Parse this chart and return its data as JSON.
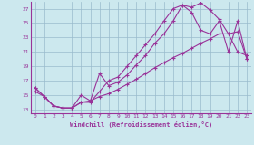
{
  "line1_spiky": {
    "x": [
      0,
      1,
      2,
      3,
      4,
      5,
      6,
      7,
      8,
      9,
      10,
      11,
      12,
      13,
      14,
      15,
      16,
      17,
      18,
      19,
      20,
      21,
      22,
      23
    ],
    "y": [
      16.0,
      14.8,
      13.5,
      13.2,
      13.2,
      15.0,
      14.2,
      18.0,
      16.3,
      16.8,
      17.8,
      19.2,
      20.5,
      22.2,
      23.5,
      25.3,
      27.5,
      27.2,
      27.8,
      26.8,
      25.5,
      23.5,
      21.0,
      20.5
    ]
  },
  "line2_peak": {
    "x": [
      0,
      1,
      2,
      3,
      4,
      5,
      6,
      7,
      8,
      9,
      10,
      11,
      12,
      13,
      14,
      15,
      16,
      17,
      18,
      19,
      20,
      21,
      22,
      23
    ],
    "y": [
      16.0,
      14.8,
      13.5,
      13.2,
      13.2,
      14.0,
      14.0,
      15.5,
      17.0,
      17.5,
      19.0,
      20.5,
      22.0,
      23.5,
      25.3,
      27.0,
      27.5,
      26.5,
      24.0,
      23.5,
      25.3,
      21.0,
      25.3,
      20.0
    ]
  },
  "line3_straight": {
    "x": [
      0,
      1,
      2,
      3,
      4,
      5,
      6,
      7,
      8,
      9,
      10,
      11,
      12,
      13,
      14,
      15,
      16,
      17,
      18,
      19,
      20,
      21,
      22,
      23
    ],
    "y": [
      15.5,
      14.8,
      13.5,
      13.2,
      13.2,
      14.0,
      14.2,
      14.8,
      15.2,
      15.8,
      16.5,
      17.2,
      18.0,
      18.8,
      19.5,
      20.2,
      20.8,
      21.5,
      22.2,
      22.8,
      23.5,
      23.5,
      23.8,
      20.0
    ]
  },
  "color": "#993399",
  "bg_color": "#cce8ee",
  "grid_color": "#99bbcc",
  "xlabel": "Windchill (Refroidissement éolien,°C)",
  "xlim": [
    -0.5,
    23.5
  ],
  "ylim": [
    12.5,
    28.0
  ],
  "yticks": [
    13,
    15,
    17,
    19,
    21,
    23,
    25,
    27
  ],
  "xticks": [
    0,
    1,
    2,
    3,
    4,
    5,
    6,
    7,
    8,
    9,
    10,
    11,
    12,
    13,
    14,
    15,
    16,
    17,
    18,
    19,
    20,
    21,
    22,
    23
  ],
  "marker": "+",
  "markersize": 3,
  "linewidth": 0.8
}
